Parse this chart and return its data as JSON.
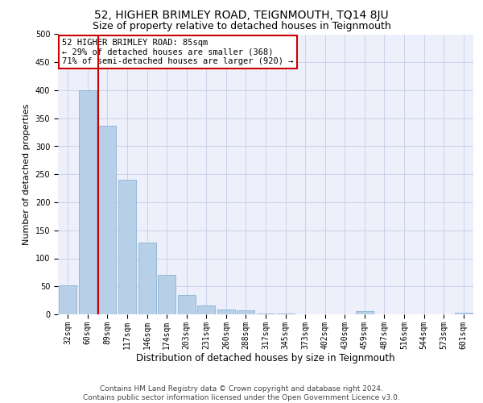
{
  "title1": "52, HIGHER BRIMLEY ROAD, TEIGNMOUTH, TQ14 8JU",
  "title2": "Size of property relative to detached houses in Teignmouth",
  "xlabel": "Distribution of detached houses by size in Teignmouth",
  "ylabel": "Number of detached properties",
  "categories": [
    "32sqm",
    "60sqm",
    "89sqm",
    "117sqm",
    "146sqm",
    "174sqm",
    "203sqm",
    "231sqm",
    "260sqm",
    "288sqm",
    "317sqm",
    "345sqm",
    "373sqm",
    "402sqm",
    "430sqm",
    "459sqm",
    "487sqm",
    "516sqm",
    "544sqm",
    "573sqm",
    "601sqm"
  ],
  "values": [
    52,
    400,
    337,
    240,
    128,
    70,
    35,
    16,
    8,
    7,
    2,
    1,
    0,
    0,
    0,
    6,
    0,
    0,
    0,
    0,
    3
  ],
  "bar_color": "#b8cfe8",
  "bar_edge_color": "#7aaad0",
  "vline_x_index": 2,
  "vline_color": "#cc0000",
  "annotation_text": "52 HIGHER BRIMLEY ROAD: 85sqm\n← 29% of detached houses are smaller (368)\n71% of semi-detached houses are larger (920) →",
  "annotation_box_color": "#ffffff",
  "annotation_box_edge": "#cc0000",
  "ylim": [
    0,
    500
  ],
  "yticks": [
    0,
    50,
    100,
    150,
    200,
    250,
    300,
    350,
    400,
    450,
    500
  ],
  "footer1": "Contains HM Land Registry data © Crown copyright and database right 2024.",
  "footer2": "Contains public sector information licensed under the Open Government Licence v3.0.",
  "bg_color": "#edf0fa",
  "title1_fontsize": 10,
  "title2_fontsize": 9,
  "xlabel_fontsize": 8.5,
  "ylabel_fontsize": 8,
  "footer_fontsize": 6.5,
  "tick_fontsize": 7
}
